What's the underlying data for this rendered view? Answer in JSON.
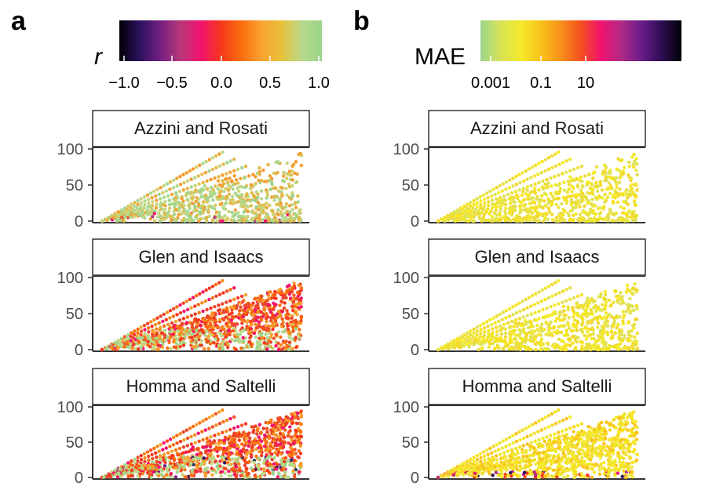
{
  "chart_data": [
    {
      "type": "scatter",
      "panel_label": "a",
      "colorbar": {
        "title": "r",
        "ticks": [
          "−1.0",
          "−0.5",
          "0.0",
          "0.5",
          "1.0"
        ],
        "range": [
          -1.0,
          1.0
        ],
        "palette": [
          "#000004",
          "#2c115f",
          "#721f81",
          "#b73779",
          "#f1136f",
          "#f6361f",
          "#fb6d0c",
          "#f9a22f",
          "#e8c13a",
          "#b9d98a",
          "#9ad48a"
        ]
      },
      "y_ticks": [
        "0",
        "50",
        "100"
      ],
      "ylim": [
        0,
        100
      ],
      "facets": [
        {
          "title": "Azzini and Rosati",
          "color_mode": "green"
        },
        {
          "title": "Glen and Isaacs",
          "color_mode": "mixed"
        },
        {
          "title": "Homma and Saltelli",
          "color_mode": "mixed-dark"
        }
      ]
    },
    {
      "type": "scatter",
      "panel_label": "b",
      "colorbar": {
        "title": "MAE",
        "ticks": [
          "0.001",
          "0.1",
          "10"
        ],
        "range": [
          -4,
          4
        ],
        "palette": [
          "#9bd48a",
          "#d6e356",
          "#f5ea2a",
          "#f9c31a",
          "#f8901a",
          "#f4501f",
          "#f1136f",
          "#b02a85",
          "#6b1d8b",
          "#2d0d54",
          "#000004"
        ]
      },
      "y_ticks": [
        "0",
        "50",
        "100"
      ],
      "ylim": [
        0,
        100
      ],
      "facets": [
        {
          "title": "Azzini and Rosati",
          "color_mode": "yellow"
        },
        {
          "title": "Glen and Isaacs",
          "color_mode": "yellow"
        },
        {
          "title": "Homma and Saltelli",
          "color_mode": "yellow-red"
        }
      ]
    }
  ]
}
